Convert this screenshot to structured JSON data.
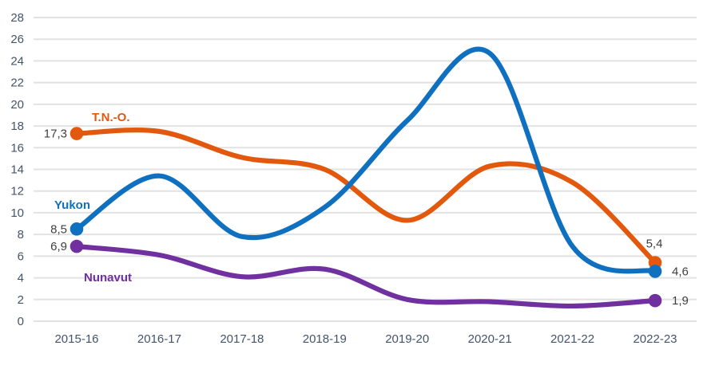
{
  "chart_data": {
    "type": "line",
    "title": "",
    "categories": [
      "2015-16",
      "2016-17",
      "2017-18",
      "2018-19",
      "2019-20",
      "2020-21",
      "2021-22",
      "2022-23"
    ],
    "xlabel": "",
    "ylabel": "",
    "ylim": [
      0,
      28
    ],
    "ytick_step": 2,
    "y_tick_labels": [
      "0",
      "2",
      "4",
      "6",
      "8",
      "10",
      "12",
      "14",
      "16",
      "18",
      "20",
      "22",
      "24",
      "26",
      "28"
    ],
    "grid": true,
    "legend_position": "inline-labels-on-chart",
    "line_style": "smooth",
    "series": [
      {
        "name": "T.N.-O.",
        "color": "#E2590E",
        "values": [
          17.3,
          17.5,
          15.1,
          14.0,
          9.3,
          14.3,
          12.8,
          5.4
        ],
        "first_point_label": "17,3",
        "last_point_label": "5,4"
      },
      {
        "name": "Yukon",
        "color": "#1070C0",
        "values": [
          8.5,
          13.4,
          7.8,
          10.5,
          18.5,
          24.7,
          6.9,
          4.6
        ],
        "first_point_label": "8,5",
        "last_point_label": "4,6"
      },
      {
        "name": "Nunavut",
        "color": "#7030A0",
        "values": [
          6.9,
          6.1,
          4.1,
          4.8,
          2.0,
          1.8,
          1.4,
          1.9
        ],
        "first_point_label": "6,9",
        "last_point_label": "1,9"
      }
    ]
  },
  "colors": {
    "background": "#FFFFFF",
    "gridline": "#E2E2E2",
    "axis_text": "#44546A",
    "value_label_text": "#404040"
  }
}
